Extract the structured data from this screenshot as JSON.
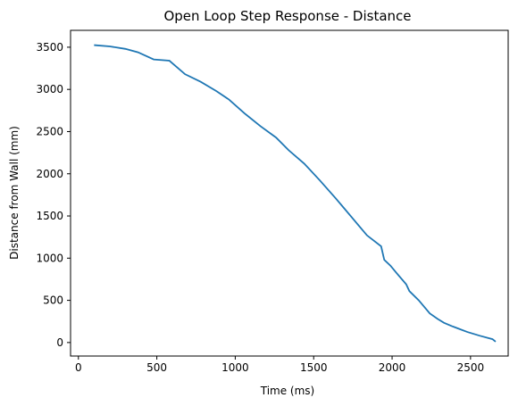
{
  "chart_data": {
    "type": "line",
    "title": "Open Loop Step Response - Distance",
    "xlabel": "Time (ms)",
    "ylabel": "Distance from Wall (mm)",
    "xlim": [
      -50,
      2740
    ],
    "ylim": [
      -160,
      3700
    ],
    "xticks": [
      0,
      500,
      1000,
      1500,
      2000,
      2500
    ],
    "yticks": [
      0,
      500,
      1000,
      1500,
      2000,
      2500,
      3000,
      3500
    ],
    "grid": false,
    "series": [
      {
        "color": "#1f77b4",
        "x": [
          100,
          200,
          300,
          380,
          480,
          580,
          680,
          780,
          880,
          960,
          1060,
          1160,
          1260,
          1340,
          1440,
          1540,
          1640,
          1740,
          1840,
          1930,
          1950,
          1990,
          2030,
          2090,
          2110,
          2170,
          2240,
          2290,
          2330,
          2380,
          2430,
          2480,
          2560,
          2640,
          2660
        ],
        "y": [
          3525,
          3510,
          3480,
          3440,
          3355,
          3340,
          3180,
          3090,
          2980,
          2880,
          2715,
          2565,
          2430,
          2280,
          2120,
          1920,
          1710,
          1490,
          1270,
          1140,
          980,
          910,
          820,
          690,
          610,
          500,
          345,
          280,
          235,
          195,
          160,
          125,
          80,
          40,
          10
        ]
      }
    ]
  }
}
